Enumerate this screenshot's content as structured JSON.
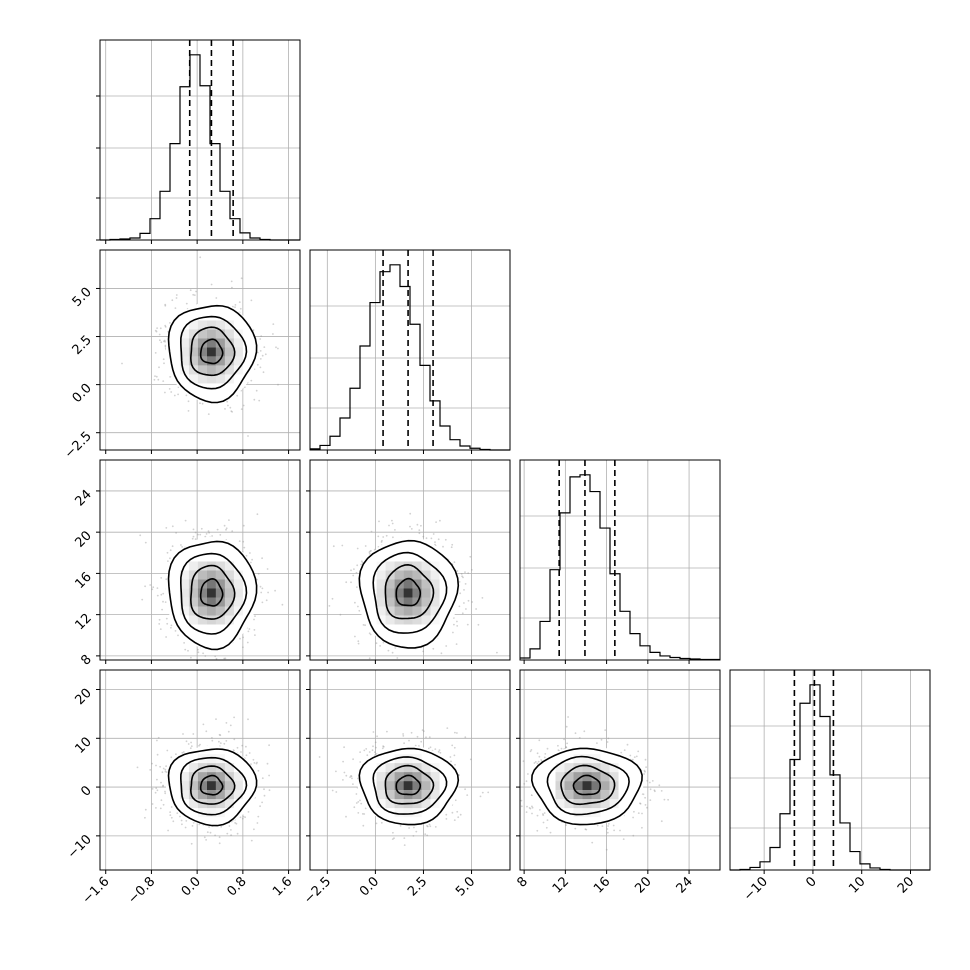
{
  "figure": {
    "variables": [
      {
        "id": "p0",
        "lim": [
          -1.7,
          1.8
        ],
        "ticks": [
          -1.6,
          -0.8,
          0.0,
          0.8,
          1.6
        ],
        "tick_labels": [
          "−1.6",
          "−0.8",
          "0.0",
          "0.8",
          "1.6"
        ],
        "mean": 0.25,
        "sd": 0.38,
        "quantiles": [
          -0.13,
          0.25,
          0.63
        ]
      },
      {
        "id": "p1",
        "lim": [
          -3.4,
          7.0
        ],
        "ticks": [
          -2.5,
          0.0,
          2.5,
          5.0
        ],
        "tick_labels": [
          "−2.5",
          "0.0",
          "2.5",
          "5.0"
        ],
        "mean": 1.7,
        "sd": 1.25,
        "quantiles": [
          0.4,
          1.7,
          3.0
        ]
      },
      {
        "id": "p2",
        "lim": [
          7.6,
          27.0
        ],
        "ticks": [
          8,
          12,
          16,
          20,
          24
        ],
        "tick_labels": [
          "8",
          "12",
          "16",
          "20",
          "24"
        ],
        "mean": 14.1,
        "sd": 2.6,
        "quantiles": [
          11.4,
          13.9,
          16.8
        ]
      },
      {
        "id": "p3",
        "lim": [
          -17,
          24
        ],
        "ticks": [
          -10,
          0,
          10,
          20
        ],
        "tick_labels": [
          "−10",
          "0",
          "10",
          "20"
        ],
        "mean": 0.3,
        "sd": 3.9,
        "quantiles": [
          -3.8,
          0.3,
          4.2
        ]
      }
    ]
  },
  "chart_data": {
    "type": "corner",
    "title": "",
    "n_variables": 4,
    "hist_bins": 20,
    "colors": {
      "line": "#000000",
      "grid": "#b0b0b0",
      "scatter": "#9a9a9a"
    },
    "histograms": [
      {
        "variable": "p0",
        "bin_edges": [
          -1.7,
          -1.525,
          -1.35,
          -1.175,
          -1.0,
          -0.825,
          -0.65,
          -0.475,
          -0.3,
          -0.125,
          0.05,
          0.225,
          0.4,
          0.575,
          0.75,
          0.925,
          1.1,
          1.275,
          1.45,
          1.625,
          1.8
        ],
        "counts": [
          0,
          1,
          2,
          4,
          13,
          42,
          96,
          190,
          302,
          365,
          304,
          190,
          96,
          42,
          14,
          4,
          1,
          0,
          0,
          0
        ],
        "dashed_lines": [
          -0.13,
          0.25,
          0.63
        ]
      },
      {
        "variable": "p1",
        "bin_edges": [
          -3.4,
          -2.88,
          -2.36,
          -1.84,
          -1.32,
          -0.8,
          -0.28,
          0.24,
          0.76,
          1.28,
          1.8,
          2.32,
          2.84,
          3.36,
          3.88,
          4.4,
          4.92,
          5.44,
          5.96,
          6.48,
          7.0
        ],
        "counts": [
          2,
          8,
          24,
          56,
          108,
          182,
          258,
          312,
          324,
          286,
          220,
          148,
          86,
          42,
          18,
          7,
          3,
          1,
          0,
          0
        ],
        "dashed_lines": [
          0.4,
          1.7,
          3.0
        ]
      },
      {
        "variable": "p2",
        "bin_edges": [
          7.6,
          8.57,
          9.54,
          10.51,
          11.48,
          12.45,
          13.42,
          14.39,
          15.36,
          16.33,
          17.3,
          18.27,
          19.24,
          20.21,
          21.18,
          22.15,
          23.12,
          24.09,
          25.06,
          26.03,
          27.0
        ],
        "counts": [
          4,
          22,
          76,
          178,
          290,
          361,
          365,
          332,
          260,
          170,
          96,
          52,
          28,
          15,
          8,
          5,
          3,
          2,
          1,
          1
        ],
        "dashed_lines": [
          11.4,
          13.9,
          16.8
        ]
      },
      {
        "variable": "p3",
        "bin_edges": [
          -17.0,
          -14.95,
          -12.9,
          -10.85,
          -8.8,
          -6.75,
          -4.7,
          -2.65,
          -0.6,
          1.45,
          3.5,
          5.55,
          7.6,
          9.65,
          11.7,
          13.75,
          15.8,
          17.85,
          19.9,
          21.95,
          24.0
        ],
        "counts": [
          0,
          1,
          5,
          16,
          44,
          110,
          216,
          326,
          362,
          300,
          186,
          92,
          36,
          12,
          4,
          1,
          0,
          0,
          0,
          0
        ],
        "dashed_lines": [
          -3.8,
          0.3,
          4.2
        ]
      }
    ],
    "pair_plots": [
      {
        "x": "p0",
        "y": "p1",
        "density_center": [
          0.25,
          1.7
        ],
        "contour_levels_sigma": [
          0.5,
          1.0,
          1.5,
          2.0
        ]
      },
      {
        "x": "p0",
        "y": "p2",
        "density_center": [
          0.25,
          14.1
        ],
        "contour_levels_sigma": [
          0.5,
          1.0,
          1.5,
          2.0
        ]
      },
      {
        "x": "p1",
        "y": "p2",
        "density_center": [
          1.7,
          14.1
        ],
        "contour_levels_sigma": [
          0.5,
          1.0,
          1.5,
          2.0
        ]
      },
      {
        "x": "p0",
        "y": "p3",
        "density_center": [
          0.25,
          0.3
        ],
        "contour_levels_sigma": [
          0.5,
          1.0,
          1.5,
          2.0
        ]
      },
      {
        "x": "p1",
        "y": "p3",
        "density_center": [
          1.7,
          0.3
        ],
        "contour_levels_sigma": [
          0.5,
          1.0,
          1.5,
          2.0
        ]
      },
      {
        "x": "p2",
        "y": "p3",
        "density_center": [
          14.1,
          0.3
        ],
        "contour_levels_sigma": [
          0.5,
          1.0,
          1.5,
          2.0
        ]
      }
    ],
    "xlabel": "",
    "ylabel": "",
    "grid": true,
    "legend": "none"
  }
}
